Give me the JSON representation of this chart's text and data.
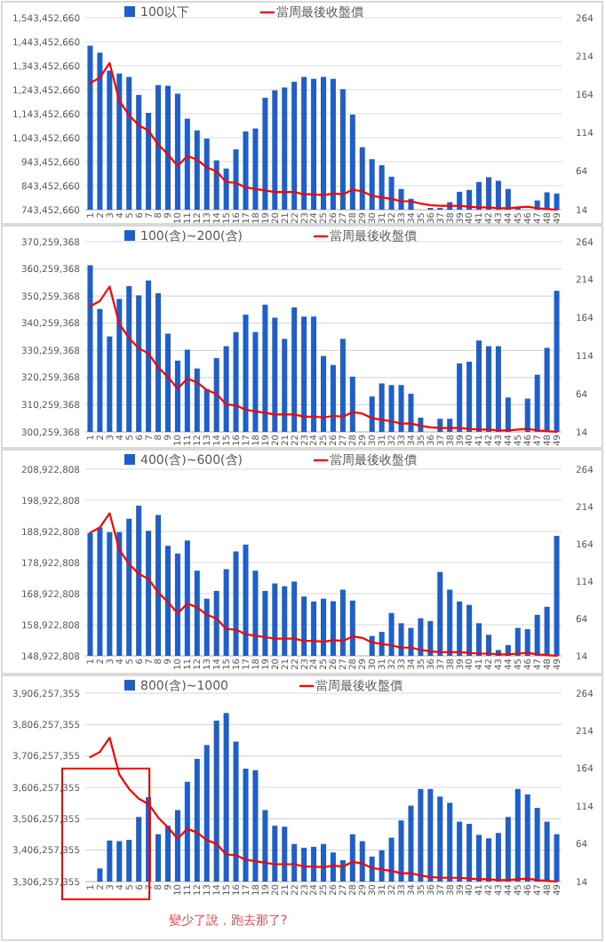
{
  "chart_data": [
    {
      "type": "bar",
      "categories": [
        "1",
        "2",
        "3",
        "4",
        "5",
        "6",
        "7",
        "8",
        "9",
        "10",
        "11",
        "12",
        "13",
        "14",
        "15",
        "16",
        "17",
        "18",
        "19",
        "20",
        "21",
        "22",
        "23",
        "24",
        "25",
        "26",
        "27",
        "28",
        "29",
        "30",
        "31",
        "32",
        "33",
        "34",
        "35",
        "36",
        "37",
        "38",
        "39",
        "40",
        "41",
        "42",
        "43",
        "44",
        "45",
        "46",
        "47",
        "48",
        "49"
      ],
      "series": [
        {
          "name": "100以下",
          "color": "#1f5fc8",
          "values": [
            1427000000,
            1398000000,
            1323000000,
            1311000000,
            1297000000,
            1222000000,
            1147000000,
            1263000000,
            1260000000,
            1227000000,
            1123000000,
            1074000000,
            1040000000,
            949000000,
            915000000,
            995000000,
            1070000000,
            1082000000,
            1210000000,
            1241000000,
            1253000000,
            1277000000,
            1297000000,
            1289000000,
            1297000000,
            1289000000,
            1246000000,
            1140000000,
            1004000000,
            954000000,
            929000000,
            881000000,
            830000000,
            789000000,
            null,
            751000000,
            751000000,
            775000000,
            818000000,
            826000000,
            859000000,
            879000000,
            864000000,
            830000000,
            751000000,
            null,
            782000000,
            816000000,
            811000000
          ]
        },
        {
          "name": "當周最後收盤價",
          "color": "#ff0000",
          "type": "line",
          "axis": "y2",
          "values": [
            179,
            186,
            205,
            156,
            137,
            124,
            117,
            99,
            86,
            71,
            84,
            79,
            69,
            64,
            50,
            49,
            43,
            41,
            39,
            37,
            37,
            37,
            34,
            34,
            33,
            35,
            34,
            40,
            38,
            32,
            30,
            28,
            25,
            25,
            22,
            20,
            19,
            19,
            19,
            18,
            17,
            17,
            16,
            16,
            17,
            18,
            16,
            15,
            14
          ]
        }
      ],
      "ylim": [
        743452660,
        1543452660
      ],
      "yticks": [
        {
          "value": 743452660,
          "label": "743,452,660"
        },
        {
          "value": 843452660,
          "label": "843,452,660"
        },
        {
          "value": 943452660,
          "label": "943,452,660"
        },
        {
          "value": 1043452660,
          "label": "1,043,452,660"
        },
        {
          "value": 1143452660,
          "label": "1,143,452,660"
        },
        {
          "value": 1243452660,
          "label": "1,243,452,660"
        },
        {
          "value": 1343452660,
          "label": "1,343,452,660"
        },
        {
          "value": 1443452660,
          "label": "1,443,452,660"
        },
        {
          "value": 1543452660,
          "label": "1,543,452,660"
        }
      ],
      "y2lim": [
        14,
        264
      ],
      "y2ticks": [
        14,
        64,
        114,
        164,
        214,
        264
      ],
      "grid": "y",
      "legend": "top"
    },
    {
      "type": "bar",
      "categories": [
        "1",
        "2",
        "3",
        "4",
        "5",
        "6",
        "7",
        "8",
        "9",
        "10",
        "11",
        "12",
        "13",
        "14",
        "15",
        "16",
        "17",
        "18",
        "19",
        "20",
        "21",
        "22",
        "23",
        "24",
        "25",
        "26",
        "27",
        "28",
        "29",
        "30",
        "31",
        "32",
        "33",
        "34",
        "35",
        "36",
        "37",
        "38",
        "39",
        "40",
        "41",
        "42",
        "43",
        "44",
        "45",
        "46",
        "47",
        "48",
        "49"
      ],
      "series": [
        {
          "name": "100(含)~200(含)",
          "color": "#1f5fc8",
          "values": [
            361600000,
            345500000,
            335400000,
            349200000,
            353900000,
            350500000,
            356000000,
            351300000,
            336400000,
            326500000,
            330500000,
            323600000,
            316000000,
            327400000,
            331800000,
            337000000,
            343400000,
            337000000,
            347100000,
            342300000,
            334500000,
            346100000,
            342700000,
            342700000,
            328200000,
            324900000,
            334500000,
            320600000,
            null,
            313300000,
            318100000,
            317500000,
            317500000,
            314300000,
            305500000,
            null,
            305100000,
            305100000,
            325500000,
            326100000,
            333900000,
            331800000,
            331800000,
            312900000,
            null,
            312500000,
            321300000,
            331200000,
            352200000
          ]
        },
        {
          "name": "當周最後收盤價",
          "color": "#ff0000",
          "type": "line",
          "axis": "y2",
          "values": [
            179,
            186,
            205,
            156,
            137,
            124,
            117,
            99,
            86,
            71,
            84,
            79,
            69,
            64,
            50,
            49,
            43,
            41,
            39,
            37,
            37,
            37,
            34,
            34,
            33,
            35,
            34,
            40,
            38,
            32,
            30,
            28,
            25,
            25,
            22,
            20,
            19,
            19,
            19,
            18,
            17,
            17,
            16,
            16,
            17,
            18,
            16,
            15,
            14
          ]
        }
      ],
      "ylim": [
        300259368,
        370259368
      ],
      "yticks": [
        {
          "value": 300259368,
          "label": "300,259,368"
        },
        {
          "value": 310259368,
          "label": "310,259,368"
        },
        {
          "value": 320259368,
          "label": "320,259,368"
        },
        {
          "value": 330259368,
          "label": "330,259,368"
        },
        {
          "value": 340259368,
          "label": "340,259,368"
        },
        {
          "value": 350259368,
          "label": "350,259,368"
        },
        {
          "value": 360259368,
          "label": "360,259,368"
        },
        {
          "value": 370259368,
          "label": "370,259,368"
        }
      ],
      "y2lim": [
        14,
        264
      ],
      "y2ticks": [
        14,
        64,
        114,
        164,
        214,
        264
      ],
      "grid": "y",
      "legend": "top"
    },
    {
      "type": "bar",
      "categories": [
        "1",
        "2",
        "3",
        "4",
        "5",
        "6",
        "7",
        "8",
        "9",
        "10",
        "11",
        "12",
        "13",
        "14",
        "15",
        "16",
        "17",
        "18",
        "19",
        "20",
        "21",
        "22",
        "23",
        "24",
        "25",
        "26",
        "27",
        "28",
        "29",
        "30",
        "31",
        "32",
        "33",
        "34",
        "35",
        "36",
        "37",
        "38",
        "39",
        "40",
        "41",
        "42",
        "43",
        "44",
        "45",
        "46",
        "47",
        "48",
        "49"
      ],
      "series": [
        {
          "name": "400(含)~600(含)",
          "color": "#1f5fc8",
          "values": [
            188400000,
            190200000,
            188700000,
            188700000,
            193000000,
            197200000,
            189100000,
            194200000,
            184300000,
            181800000,
            186000000,
            176300000,
            167300000,
            169800000,
            176800000,
            182500000,
            184700000,
            176300000,
            169800000,
            172200000,
            171300000,
            172800000,
            168000000,
            166400000,
            167300000,
            166500000,
            170200000,
            166700000,
            null,
            155300000,
            156600000,
            162700000,
            159400000,
            157900000,
            161000000,
            160100000,
            175900000,
            170200000,
            166400000,
            165300000,
            159400000,
            155700000,
            150800000,
            152400000,
            157900000,
            157500000,
            162100000,
            164700000,
            187500000
          ]
        },
        {
          "name": "當周最後收盤價",
          "color": "#ff0000",
          "type": "line",
          "axis": "y2",
          "values": [
            179,
            186,
            205,
            156,
            137,
            124,
            117,
            99,
            86,
            71,
            84,
            79,
            69,
            64,
            50,
            49,
            43,
            41,
            39,
            37,
            37,
            37,
            34,
            34,
            33,
            35,
            34,
            40,
            38,
            32,
            30,
            28,
            25,
            25,
            22,
            20,
            19,
            19,
            19,
            18,
            17,
            17,
            16,
            16,
            17,
            18,
            16,
            15,
            14
          ]
        }
      ],
      "ylim": [
        148922808,
        208922808
      ],
      "yticks": [
        {
          "value": 148922808,
          "label": "148,922,808"
        },
        {
          "value": 158922808,
          "label": "158,922,808"
        },
        {
          "value": 168922808,
          "label": "168,922,808"
        },
        {
          "value": 178922808,
          "label": "178,922,808"
        },
        {
          "value": 188922808,
          "label": "188,922,808"
        },
        {
          "value": 198922808,
          "label": "198,922,808"
        },
        {
          "value": 208922808,
          "label": "208,922,808"
        }
      ],
      "y2lim": [
        14,
        264
      ],
      "y2ticks": [
        14,
        64,
        114,
        164,
        214,
        264
      ],
      "grid": "y",
      "legend": "top"
    },
    {
      "type": "bar",
      "categories": [
        "1",
        "2",
        "3",
        "4",
        "5",
        "6",
        "7",
        "8",
        "9",
        "10",
        "11",
        "12",
        "13",
        "14",
        "15",
        "16",
        "17",
        "18",
        "19",
        "20",
        "21",
        "22",
        "23",
        "24",
        "25",
        "26",
        "27",
        "28",
        "29",
        "30",
        "31",
        "32",
        "33",
        "34",
        "35",
        "36",
        "37",
        "38",
        "39",
        "40",
        "41",
        "42",
        "43",
        "44",
        "45",
        "46",
        "47",
        "48",
        "49"
      ],
      "series": [
        {
          "name": "800(含)~1000",
          "color": "#1f5fc8",
          "values": [
            null,
            3348000000,
            3437000000,
            3435000000,
            3439000000,
            3512000000,
            3575000000,
            3457000000,
            3484000000,
            3534000000,
            3624000000,
            3697000000,
            3741000000,
            3819000000,
            3843000000,
            3752000000,
            3666000000,
            3661000000,
            3534000000,
            3484000000,
            3481000000,
            3426000000,
            3414000000,
            3417000000,
            3426000000,
            3399000000,
            3374000000,
            3457000000,
            3435000000,
            3386000000,
            3406000000,
            3446000000,
            3501000000,
            3548000000,
            3601000000,
            3601000000,
            3577000000,
            3557000000,
            3497000000,
            3490000000,
            3455000000,
            3444000000,
            3461000000,
            3512000000,
            3601000000,
            3584000000,
            3541000000,
            3497000000,
            3457000000
          ]
        },
        {
          "name": "當周最後收盤價",
          "color": "#ff0000",
          "type": "line",
          "axis": "y2",
          "values": [
            179,
            186,
            205,
            156,
            137,
            124,
            117,
            99,
            86,
            71,
            84,
            79,
            69,
            64,
            50,
            49,
            43,
            41,
            39,
            37,
            37,
            37,
            34,
            34,
            33,
            35,
            34,
            40,
            38,
            32,
            30,
            28,
            25,
            25,
            22,
            20,
            19,
            19,
            19,
            18,
            17,
            17,
            16,
            16,
            17,
            18,
            16,
            15,
            14
          ]
        }
      ],
      "ylim": [
        3306257355,
        3906257355
      ],
      "yticks": [
        {
          "value": 3306257355,
          "label": "3,306,257,355"
        },
        {
          "value": 3406257355,
          "label": "3,406,257,355"
        },
        {
          "value": 3506257355,
          "label": "3,506,257,355"
        },
        {
          "value": 3606257355,
          "label": "3,606,257,355"
        },
        {
          "value": 3706257355,
          "label": "3,706,257,355"
        },
        {
          "value": 3806257355,
          "label": "3,806,257,355"
        },
        {
          "value": 3906257355,
          "label": "3,906,257,355"
        }
      ],
      "y2lim": [
        14,
        264
      ],
      "y2ticks": [
        14,
        64,
        114,
        164,
        214,
        264
      ],
      "grid": "y",
      "legend": "top",
      "annotations": [
        "變少了說，跑去那了?"
      ]
    }
  ]
}
